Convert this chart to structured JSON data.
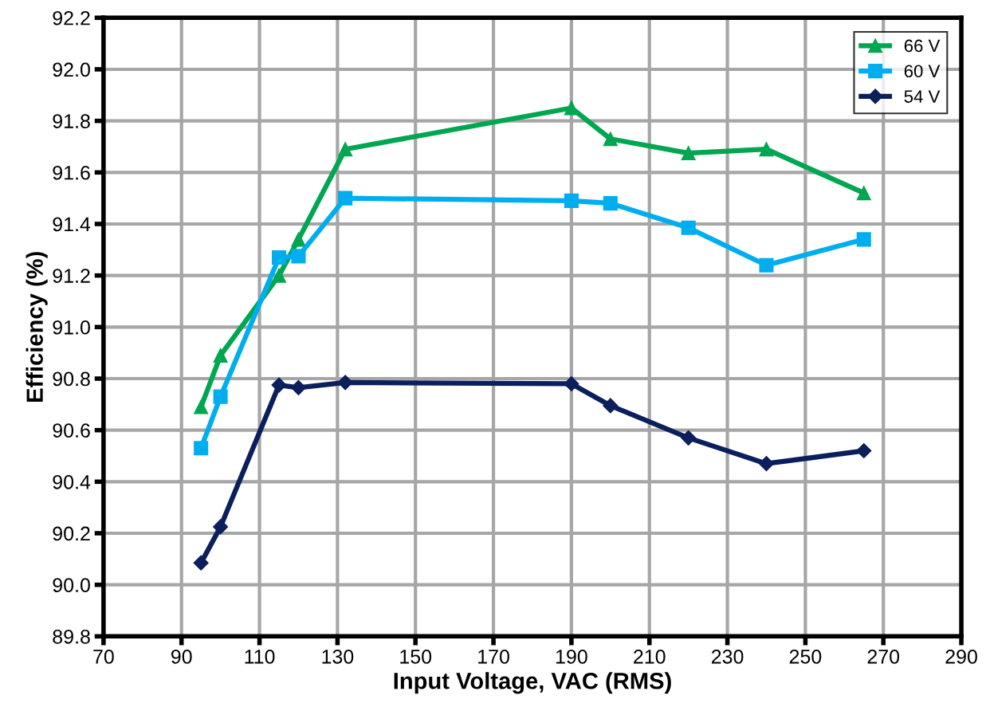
{
  "chart_data": {
    "type": "line",
    "xlabel": "Input Voltage, VAC (RMS)",
    "ylabel": "Efficiency (%)",
    "x": [
      95,
      100,
      115,
      120,
      132,
      190,
      200,
      220,
      240,
      265
    ],
    "series": [
      {
        "name": "66 V",
        "color": "#00a650",
        "marker": "triangle",
        "values": [
          90.69,
          90.89,
          91.2,
          91.34,
          91.69,
          91.85,
          91.73,
          91.675,
          91.69,
          91.52
        ]
      },
      {
        "name": "60 V",
        "color": "#00aeef",
        "marker": "square",
        "values": [
          90.53,
          90.73,
          91.27,
          91.275,
          91.5,
          91.49,
          91.48,
          91.385,
          91.24,
          91.34
        ]
      },
      {
        "name": "54 V",
        "color": "#0b1f5c",
        "marker": "diamond",
        "values": [
          90.085,
          90.225,
          90.775,
          90.765,
          90.785,
          90.78,
          90.695,
          90.57,
          90.47,
          90.52
        ]
      }
    ],
    "xlim": [
      70,
      290
    ],
    "xticks": [
      70,
      90,
      110,
      130,
      150,
      170,
      190,
      210,
      230,
      250,
      270,
      290
    ],
    "ylim": [
      89.8,
      92.2
    ],
    "yticks": [
      {
        "value": 89.8,
        "label": "89.8"
      },
      {
        "value": 90.0,
        "label": "90.0"
      },
      {
        "value": 90.2,
        "label": "90.2"
      },
      {
        "value": 90.4,
        "label": "90.4"
      },
      {
        "value": 90.6,
        "label": "90.6"
      },
      {
        "value": 90.8,
        "label": "90.8"
      },
      {
        "value": 91.0,
        "label": "91.0"
      },
      {
        "value": 91.2,
        "label": "91.2"
      },
      {
        "value": 91.4,
        "label": "91.4"
      },
      {
        "value": 91.6,
        "label": "91.6"
      },
      {
        "value": 91.8,
        "label": "91.8"
      },
      {
        "value": 92.0,
        "label": "92.0"
      },
      {
        "value": 92.2,
        "label": "92.2"
      }
    ],
    "grid": true,
    "legend": "top right",
    "line_style": "solid"
  }
}
